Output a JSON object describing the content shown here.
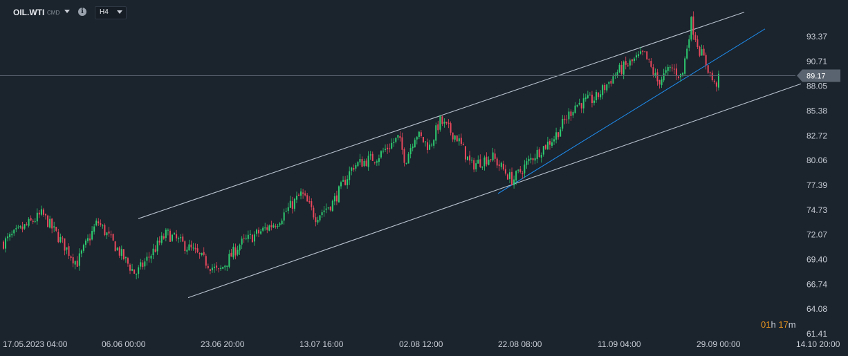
{
  "header": {
    "symbol": "OIL.WTI",
    "symbol_suffix": "CMD",
    "info_icon": "info-icon",
    "timeframe": "H4"
  },
  "timer": {
    "hours": "01",
    "h": "h",
    "minutes": "17",
    "m": "m"
  },
  "colors": {
    "background": "#1b232c",
    "bull": "#2ecc71",
    "bear": "#e8485c",
    "channel": "#b8c3d0",
    "trendline": "#1e88e5",
    "price_line": "#5a6470",
    "price_badge": "#5a6470"
  },
  "chart_data": {
    "type": "candlestick",
    "symbol": "OIL.WTI",
    "timeframe": "H4",
    "current_price": 89.17,
    "y_ticks": [
      93.37,
      90.71,
      88.05,
      85.38,
      82.72,
      80.06,
      77.39,
      74.73,
      72.07,
      69.4,
      66.74,
      64.08,
      61.41
    ],
    "y_tick_labels": [
      "93.37",
      "90.71",
      "88.05",
      "85.38",
      "82.72",
      "80.06",
      "77.39",
      "74.73",
      "72.07",
      "69.40",
      "66.74",
      "64.08",
      "61.41"
    ],
    "x_ticks": [
      "17.05.2023  04:00",
      "06.06  00:00",
      "23.06  20:00",
      "13.07  16:00",
      "02.08  12:00",
      "22.08  08:00",
      "11.09  04:00",
      "29.09  00:00",
      "14.10  20:00"
    ],
    "ylim": [
      61.41,
      96.0
    ],
    "grid": false,
    "price_anchors": [
      [
        0,
        71.0
      ],
      [
        60,
        74.3
      ],
      [
        110,
        69.0
      ],
      [
        140,
        73.5
      ],
      [
        195,
        67.8
      ],
      [
        240,
        72.2
      ],
      [
        275,
        70.5
      ],
      [
        315,
        68.0
      ],
      [
        345,
        71.0
      ],
      [
        400,
        73.5
      ],
      [
        435,
        76.5
      ],
      [
        455,
        74.0
      ],
      [
        480,
        75.5
      ],
      [
        510,
        79.5
      ],
      [
        545,
        80.5
      ],
      [
        575,
        82.5
      ],
      [
        585,
        80.0
      ],
      [
        600,
        83.0
      ],
      [
        620,
        81.5
      ],
      [
        635,
        84.3
      ],
      [
        660,
        82.5
      ],
      [
        680,
        79.5
      ],
      [
        710,
        80.5
      ],
      [
        740,
        77.9
      ],
      [
        770,
        80.5
      ],
      [
        800,
        82.5
      ],
      [
        830,
        86.0
      ],
      [
        860,
        86.7
      ],
      [
        890,
        89.5
      ],
      [
        930,
        91.5
      ],
      [
        950,
        88.5
      ],
      [
        970,
        90.0
      ],
      [
        985,
        89.0
      ],
      [
        998,
        95.0
      ],
      [
        1010,
        92.0
      ],
      [
        1020,
        90.5
      ],
      [
        1032,
        88.1
      ],
      [
        1042,
        89.2
      ]
    ],
    "annotations": [
      {
        "type": "channel_upper",
        "x1": 200,
        "y1": 73.8,
        "x2": 1076,
        "y2": 96.0
      },
      {
        "type": "channel_lower",
        "x1": 272,
        "y1": 65.3,
        "x2": 1158,
        "y2": 88.3
      },
      {
        "type": "trendline",
        "x1": 720,
        "y1": 76.5,
        "x2": 1106,
        "y2": 94.2
      }
    ]
  }
}
